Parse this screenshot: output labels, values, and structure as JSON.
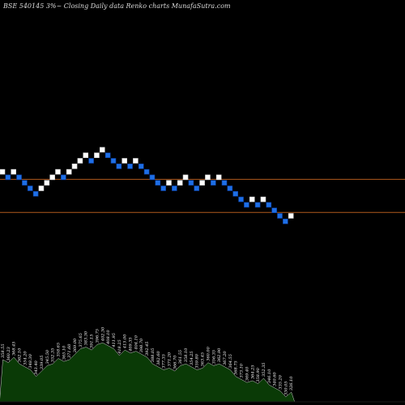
{
  "header": {
    "title": "BSE 540145 3%~  Closing Daily data  Renko  charts MunafaSutra.com"
  },
  "colors": {
    "background": "#000000",
    "brick_up": "#ffffff",
    "brick_down": "#1e6fe6",
    "level_line": "#b05a1c",
    "volume_fill": "#0a3a06",
    "volume_stroke": "#cfcfcf"
  },
  "chart_data": [
    {
      "type": "renko",
      "title": "BSE 540145 3%~  Closing Daily data  Renko  charts MunafaSutra.com",
      "brick_step": 1,
      "bricks": [
        {
          "level": 12,
          "dir": "up"
        },
        {
          "level": 11,
          "dir": "down"
        },
        {
          "level": 12,
          "dir": "up"
        },
        {
          "level": 11,
          "dir": "down"
        },
        {
          "level": 10,
          "dir": "down"
        },
        {
          "level": 9,
          "dir": "down"
        },
        {
          "level": 8,
          "dir": "down"
        },
        {
          "level": 9,
          "dir": "up"
        },
        {
          "level": 10,
          "dir": "up"
        },
        {
          "level": 11,
          "dir": "up"
        },
        {
          "level": 12,
          "dir": "up"
        },
        {
          "level": 11,
          "dir": "down"
        },
        {
          "level": 12,
          "dir": "up"
        },
        {
          "level": 13,
          "dir": "up"
        },
        {
          "level": 14,
          "dir": "up"
        },
        {
          "level": 15,
          "dir": "up"
        },
        {
          "level": 14,
          "dir": "down"
        },
        {
          "level": 15,
          "dir": "up"
        },
        {
          "level": 16,
          "dir": "up"
        },
        {
          "level": 15,
          "dir": "down"
        },
        {
          "level": 14,
          "dir": "down"
        },
        {
          "level": 13,
          "dir": "down"
        },
        {
          "level": 14,
          "dir": "up"
        },
        {
          "level": 13,
          "dir": "down"
        },
        {
          "level": 14,
          "dir": "up"
        },
        {
          "level": 13,
          "dir": "down"
        },
        {
          "level": 12,
          "dir": "down"
        },
        {
          "level": 11,
          "dir": "down"
        },
        {
          "level": 10,
          "dir": "down"
        },
        {
          "level": 9,
          "dir": "down"
        },
        {
          "level": 10,
          "dir": "up"
        },
        {
          "level": 9,
          "dir": "down"
        },
        {
          "level": 10,
          "dir": "up"
        },
        {
          "level": 11,
          "dir": "up"
        },
        {
          "level": 10,
          "dir": "down"
        },
        {
          "level": 9,
          "dir": "down"
        },
        {
          "level": 10,
          "dir": "up"
        },
        {
          "level": 11,
          "dir": "up"
        },
        {
          "level": 10,
          "dir": "down"
        },
        {
          "level": 11,
          "dir": "up"
        },
        {
          "level": 10,
          "dir": "down"
        },
        {
          "level": 9,
          "dir": "down"
        },
        {
          "level": 8,
          "dir": "down"
        },
        {
          "level": 7,
          "dir": "down"
        },
        {
          "level": 6,
          "dir": "down"
        },
        {
          "level": 7,
          "dir": "up"
        },
        {
          "level": 6,
          "dir": "down"
        },
        {
          "level": 7,
          "dir": "up"
        },
        {
          "level": 6,
          "dir": "down"
        },
        {
          "level": 5,
          "dir": "down"
        },
        {
          "level": 4,
          "dir": "down"
        },
        {
          "level": 3,
          "dir": "down"
        },
        {
          "level": 4,
          "dir": "up"
        }
      ],
      "reference_levels": [
        11,
        5
      ],
      "volume_labels": [
        "358.55",
        "360.23",
        "368.45",
        "362.10",
        "354.20",
        "348.30",
        "343.40",
        "339.05",
        "345.50",
        "352.35",
        "358.65",
        "365.10",
        "371.60",
        "369.00",
        "375.65",
        "383.30",
        "391.15",
        "396.75",
        "402.30",
        "408.10",
        "411.95",
        "418.25",
        "415.00",
        "409.35",
        "404.10",
        "398.70",
        "392.45",
        "388.05",
        "382.60",
        "377.35",
        "371.20",
        "366.70",
        "361.55",
        "358.10",
        "354.25",
        "359.80",
        "363.45",
        "360.00",
        "356.35",
        "362.90",
        "367.20",
        "364.55",
        "368.75",
        "373.10",
        "369.40",
        "364.25",
        "358.90",
        "352.35",
        "346.10",
        "340.60",
        "335.20",
        "330.05",
        "326.10"
      ]
    }
  ]
}
